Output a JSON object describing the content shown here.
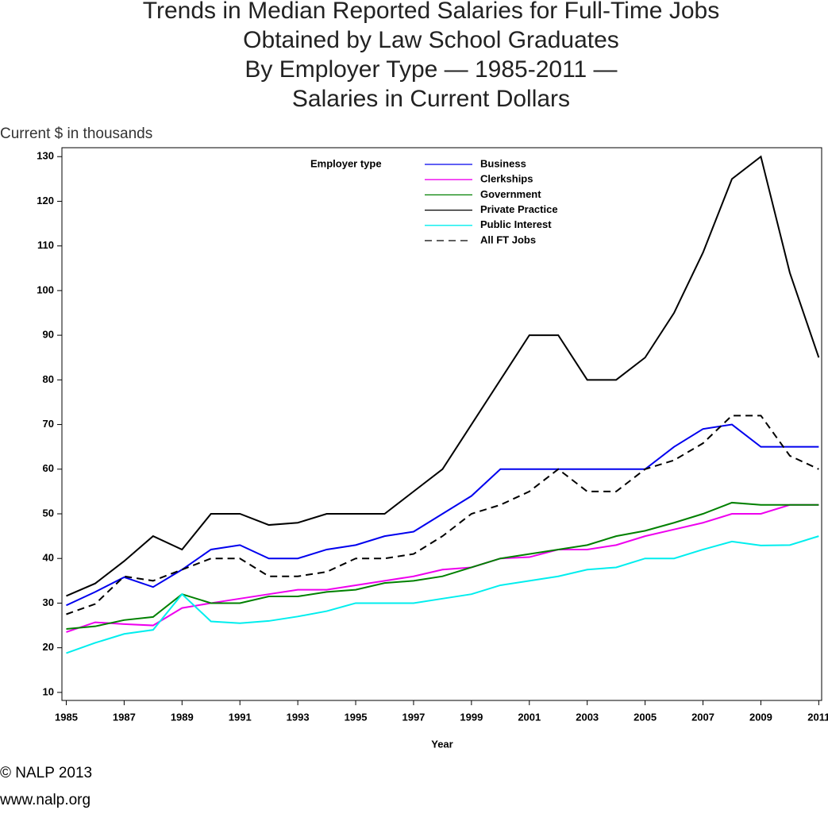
{
  "chart_data": {
    "type": "line",
    "title": [
      "Trends in Median Reported Salaries for Full-Time Jobs",
      "Obtained by Law School Graduates",
      "By Employer Type — 1985-2011 —",
      "Salaries in Current Dollars"
    ],
    "y_label": "Current $ in thousands",
    "x_label": "Year",
    "legend_title": "Employer type",
    "footer": [
      "© NALP 2013",
      "www.nalp.org"
    ],
    "x": [
      1985,
      1986,
      1987,
      1988,
      1989,
      1990,
      1991,
      1992,
      1993,
      1994,
      1995,
      1996,
      1997,
      1998,
      1999,
      2000,
      2001,
      2002,
      2003,
      2004,
      2005,
      2006,
      2007,
      2008,
      2009,
      2010,
      2011
    ],
    "xlim": [
      1984.85,
      2011.1
    ],
    "xticks": [
      1985,
      1987,
      1989,
      1991,
      1993,
      1995,
      1997,
      1999,
      2001,
      2003,
      2005,
      2007,
      2009,
      2011
    ],
    "ylim": [
      8.2,
      132
    ],
    "yticks": [
      10,
      20,
      30,
      40,
      50,
      60,
      70,
      80,
      90,
      100,
      110,
      120,
      130
    ],
    "series": [
      {
        "name": "Business",
        "color": "#0000ee",
        "dashed": false,
        "values": [
          29.5,
          32.5,
          35.8,
          33.6,
          37.5,
          42,
          43,
          40,
          40,
          42,
          43,
          45,
          46,
          50,
          54,
          60,
          60,
          60,
          60,
          60,
          60,
          65,
          69,
          70,
          65,
          65,
          65
        ]
      },
      {
        "name": "Clerkships",
        "color": "#ee00ee",
        "dashed": false,
        "values": [
          23.5,
          25.7,
          25.3,
          25,
          28.9,
          30,
          31,
          32,
          33,
          33,
          34,
          35,
          36,
          37.5,
          38,
          40,
          40.3,
          42,
          42,
          43,
          45,
          46.5,
          48,
          50,
          50,
          52,
          52
        ]
      },
      {
        "name": "Government",
        "color": "#008000",
        "dashed": false,
        "values": [
          24.2,
          24.8,
          26.2,
          26.9,
          32,
          30,
          30,
          31.5,
          31.5,
          32.5,
          33,
          34.5,
          35,
          36,
          38,
          40,
          41,
          42,
          43,
          45,
          46.2,
          48,
          50,
          52.5,
          52,
          52,
          52
        ]
      },
      {
        "name": "Private Practice",
        "color": "#000000",
        "dashed": false,
        "values": [
          31.6,
          34.4,
          39.4,
          45,
          42,
          50,
          50,
          47.5,
          48,
          50,
          50,
          50,
          55,
          60,
          70,
          80,
          90,
          90,
          80,
          80,
          85,
          95,
          108.5,
          125,
          130,
          104,
          85
        ]
      },
      {
        "name": "Public Interest",
        "color": "#00eeee",
        "dashed": false,
        "values": [
          18.8,
          21.1,
          23.1,
          24,
          32,
          25.9,
          25.5,
          26,
          27,
          28.2,
          30,
          30,
          30,
          31,
          32,
          34,
          35,
          36,
          37.5,
          38,
          40,
          40,
          42,
          43.8,
          42.9,
          43,
          45
        ]
      },
      {
        "name": "All FT Jobs",
        "color": "#000000",
        "dashed": true,
        "values": [
          27.5,
          29.8,
          36,
          35,
          37.5,
          40,
          40,
          36,
          36,
          37,
          40,
          40,
          41,
          45,
          50,
          52,
          55,
          60,
          55,
          55,
          60,
          62,
          65.8,
          72,
          72,
          63,
          60
        ]
      }
    ]
  }
}
